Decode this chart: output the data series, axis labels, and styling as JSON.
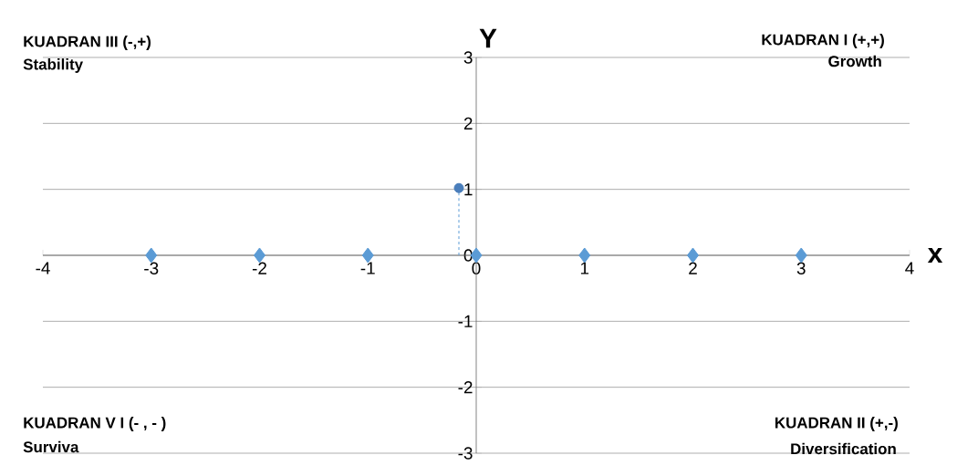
{
  "chart_data": {
    "type": "scatter",
    "xlabel": "x",
    "ylabel": "Y",
    "annotations": [
      "KUADRAN III (-,+)",
      "Stability",
      "KUADRAN  I  (+,+)",
      "Growth",
      "KUADRAN V I  (- , - )",
      "Surviva",
      "KUADRAN  II  (+,-)",
      "Diversification"
    ],
    "series": [
      {
        "type": "scatter",
        "marker": "diamond",
        "color": "#5b9bd5",
        "x": [
          -3,
          -2,
          -1,
          0,
          1,
          2,
          3
        ],
        "values": [
          0,
          0,
          0,
          0,
          0,
          0,
          0
        ]
      },
      {
        "type": "line",
        "marker": "none",
        "line_style": "dashed",
        "color": "#5b9bd5",
        "x": [
          -0.16,
          -0.16
        ],
        "values": [
          0,
          1.02
        ]
      },
      {
        "type": "scatter",
        "marker": "circle",
        "color": "#4a7ebb",
        "x": [
          -0.16
        ],
        "values": [
          1.02
        ]
      }
    ],
    "xlim": [
      -4,
      4
    ],
    "ylim": [
      -3,
      3
    ],
    "xticks": [
      -4,
      -3,
      -2,
      -1,
      0,
      1,
      2,
      3,
      4
    ],
    "yticks": [
      -3,
      -2,
      -1,
      0,
      1,
      2,
      3
    ],
    "grid": "y"
  }
}
